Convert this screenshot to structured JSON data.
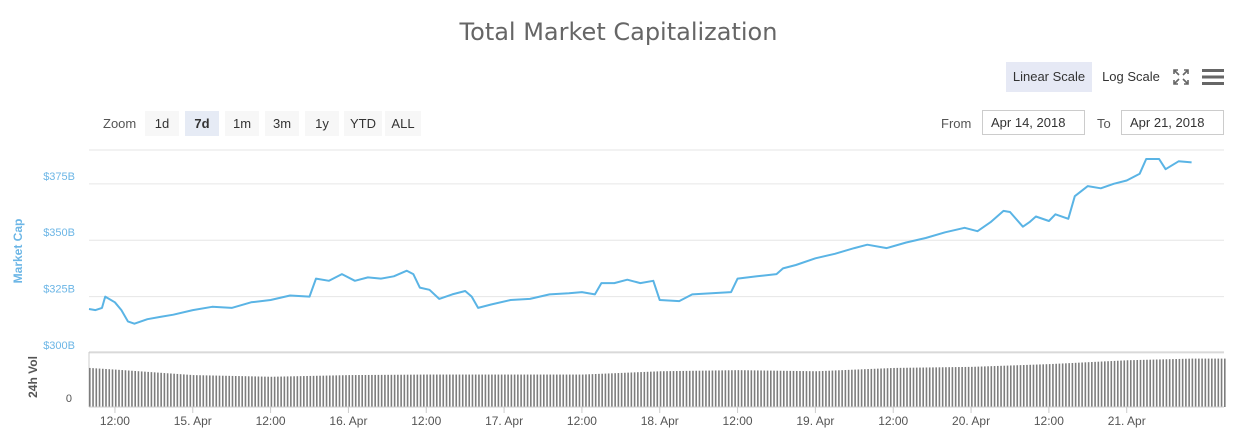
{
  "title": "Total Market Capitalization",
  "scale_buttons": {
    "linear": "Linear Scale",
    "log": "Log Scale",
    "selected": "linear"
  },
  "icons": {
    "fullscreen": "fullscreen-icon",
    "menu": "hamburger-menu-icon"
  },
  "zoom": {
    "label": "Zoom",
    "options": [
      "1d",
      "7d",
      "1m",
      "3m",
      "1y",
      "YTD",
      "ALL"
    ],
    "selected": "7d"
  },
  "range": {
    "from_label": "From",
    "from_value": "Apr 14, 2018",
    "to_label": "To",
    "to_value": "Apr 21, 2018"
  },
  "colors": {
    "line": "#5ab4e5",
    "volume": "#7d7d7d",
    "grid": "#e6e6e6",
    "axis_text": "#6cb6e6",
    "selected_button": "#e6e9f5"
  },
  "chart_data": {
    "type": "line",
    "title": "Total Market Capitalization",
    "ylabel": "Market Cap",
    "yticks": [
      "$300B",
      "$325B",
      "$350B",
      "$375B"
    ],
    "ylim": [
      300,
      390
    ],
    "y_unit": "billion USD",
    "xlim": [
      "2018-04-14T08:00",
      "2018-04-21T15:00"
    ],
    "xticks": [
      {
        "t": "2018-04-14T12:00",
        "label": "12:00"
      },
      {
        "t": "2018-04-15T00:00",
        "label": "15. Apr"
      },
      {
        "t": "2018-04-15T12:00",
        "label": "12:00"
      },
      {
        "t": "2018-04-16T00:00",
        "label": "16. Apr"
      },
      {
        "t": "2018-04-16T12:00",
        "label": "12:00"
      },
      {
        "t": "2018-04-17T00:00",
        "label": "17. Apr"
      },
      {
        "t": "2018-04-17T12:00",
        "label": "12:00"
      },
      {
        "t": "2018-04-18T00:00",
        "label": "18. Apr"
      },
      {
        "t": "2018-04-18T12:00",
        "label": "12:00"
      },
      {
        "t": "2018-04-19T00:00",
        "label": "19. Apr"
      },
      {
        "t": "2018-04-19T12:00",
        "label": "12:00"
      },
      {
        "t": "2018-04-20T00:00",
        "label": "20. Apr"
      },
      {
        "t": "2018-04-20T12:00",
        "label": "12:00"
      },
      {
        "t": "2018-04-21T00:00",
        "label": "21. Apr"
      }
    ],
    "grid": true,
    "legend": "none",
    "series": [
      {
        "values": [
          [
            "2018-04-14T08:00",
            319.5
          ],
          [
            "2018-04-14T09:00",
            319.0
          ],
          [
            "2018-04-14T10:00",
            320.0
          ],
          [
            "2018-04-14T10:30",
            325.0
          ],
          [
            "2018-04-14T12:00",
            322.5
          ],
          [
            "2018-04-14T13:00",
            319.0
          ],
          [
            "2018-04-14T14:00",
            314.0
          ],
          [
            "2018-04-14T15:00",
            313.0
          ],
          [
            "2018-04-14T17:00",
            315.0
          ],
          [
            "2018-04-14T19:00",
            316.0
          ],
          [
            "2018-04-14T21:00",
            317.0
          ],
          [
            "2018-04-15T00:00",
            319.0
          ],
          [
            "2018-04-15T03:00",
            320.5
          ],
          [
            "2018-04-15T06:00",
            320.0
          ],
          [
            "2018-04-15T09:00",
            322.5
          ],
          [
            "2018-04-15T12:00",
            323.5
          ],
          [
            "2018-04-15T15:00",
            325.5
          ],
          [
            "2018-04-15T18:00",
            325.0
          ],
          [
            "2018-04-15T19:00",
            333.0
          ],
          [
            "2018-04-15T21:00",
            332.0
          ],
          [
            "2018-04-15T23:00",
            335.0
          ],
          [
            "2018-04-16T01:00",
            332.0
          ],
          [
            "2018-04-16T03:00",
            333.5
          ],
          [
            "2018-04-16T05:00",
            333.0
          ],
          [
            "2018-04-16T07:00",
            334.0
          ],
          [
            "2018-04-16T09:00",
            336.5
          ],
          [
            "2018-04-16T10:00",
            335.0
          ],
          [
            "2018-04-16T11:00",
            329.0
          ],
          [
            "2018-04-16T12:30",
            328.0
          ],
          [
            "2018-04-16T14:00",
            324.0
          ],
          [
            "2018-04-16T16:00",
            326.0
          ],
          [
            "2018-04-16T18:00",
            327.5
          ],
          [
            "2018-04-16T19:00",
            325.0
          ],
          [
            "2018-04-16T20:00",
            320.0
          ],
          [
            "2018-04-16T22:00",
            321.5
          ],
          [
            "2018-04-17T01:00",
            323.5
          ],
          [
            "2018-04-17T04:00",
            324.0
          ],
          [
            "2018-04-17T07:00",
            326.0
          ],
          [
            "2018-04-17T10:00",
            326.5
          ],
          [
            "2018-04-17T12:00",
            327.0
          ],
          [
            "2018-04-17T14:00",
            326.0
          ],
          [
            "2018-04-17T15:00",
            331.0
          ],
          [
            "2018-04-17T17:00",
            331.0
          ],
          [
            "2018-04-17T19:00",
            332.5
          ],
          [
            "2018-04-17T21:00",
            331.0
          ],
          [
            "2018-04-17T23:00",
            332.0
          ],
          [
            "2018-04-18T00:00",
            323.5
          ],
          [
            "2018-04-18T03:00",
            323.0
          ],
          [
            "2018-04-18T05:00",
            326.0
          ],
          [
            "2018-04-18T08:00",
            326.5
          ],
          [
            "2018-04-18T11:00",
            327.0
          ],
          [
            "2018-04-18T12:00",
            333.0
          ],
          [
            "2018-04-18T15:00",
            334.0
          ],
          [
            "2018-04-18T18:00",
            335.0
          ],
          [
            "2018-04-18T19:00",
            337.5
          ],
          [
            "2018-04-18T21:00",
            339.0
          ],
          [
            "2018-04-19T00:00",
            342.0
          ],
          [
            "2018-04-19T03:00",
            344.0
          ],
          [
            "2018-04-19T06:00",
            346.5
          ],
          [
            "2018-04-19T08:00",
            348.0
          ],
          [
            "2018-04-19T11:00",
            346.5
          ],
          [
            "2018-04-19T14:00",
            349.0
          ],
          [
            "2018-04-19T17:00",
            351.0
          ],
          [
            "2018-04-19T20:00",
            353.5
          ],
          [
            "2018-04-19T23:00",
            355.5
          ],
          [
            "2018-04-20T01:00",
            354.0
          ],
          [
            "2018-04-20T03:00",
            358.0
          ],
          [
            "2018-04-20T05:00",
            363.0
          ],
          [
            "2018-04-20T06:00",
            362.5
          ],
          [
            "2018-04-20T08:00",
            356.0
          ],
          [
            "2018-04-20T09:00",
            358.0
          ],
          [
            "2018-04-20T10:00",
            360.5
          ],
          [
            "2018-04-20T12:00",
            358.5
          ],
          [
            "2018-04-20T13:00",
            361.5
          ],
          [
            "2018-04-20T15:00",
            359.5
          ],
          [
            "2018-04-20T16:00",
            369.5
          ],
          [
            "2018-04-20T18:00",
            374.0
          ],
          [
            "2018-04-20T20:00",
            373.0
          ],
          [
            "2018-04-20T22:00",
            375.0
          ],
          [
            "2018-04-21T00:00",
            376.5
          ],
          [
            "2018-04-21T02:00",
            379.5
          ],
          [
            "2018-04-21T03:00",
            386.0
          ],
          [
            "2018-04-21T05:00",
            386.0
          ],
          [
            "2018-04-21T06:00",
            381.5
          ],
          [
            "2018-04-21T08:00",
            385.0
          ],
          [
            "2018-04-21T10:00",
            384.5
          ]
        ]
      }
    ],
    "volume": {
      "label": "24h Vol",
      "ytick": "0",
      "relative_values": [
        [
          "2018-04-14T08:00",
          0.71
        ],
        [
          "2018-04-14T12:00",
          0.68
        ],
        [
          "2018-04-15T00:00",
          0.58
        ],
        [
          "2018-04-15T12:00",
          0.55
        ],
        [
          "2018-04-16T00:00",
          0.58
        ],
        [
          "2018-04-16T12:00",
          0.59
        ],
        [
          "2018-04-17T00:00",
          0.59
        ],
        [
          "2018-04-17T12:00",
          0.59
        ],
        [
          "2018-04-18T00:00",
          0.65
        ],
        [
          "2018-04-18T12:00",
          0.67
        ],
        [
          "2018-04-19T00:00",
          0.65
        ],
        [
          "2018-04-19T12:00",
          0.71
        ],
        [
          "2018-04-20T00:00",
          0.73
        ],
        [
          "2018-04-20T12:00",
          0.78
        ],
        [
          "2018-04-21T00:00",
          0.85
        ],
        [
          "2018-04-21T10:00",
          0.88
        ]
      ]
    }
  }
}
